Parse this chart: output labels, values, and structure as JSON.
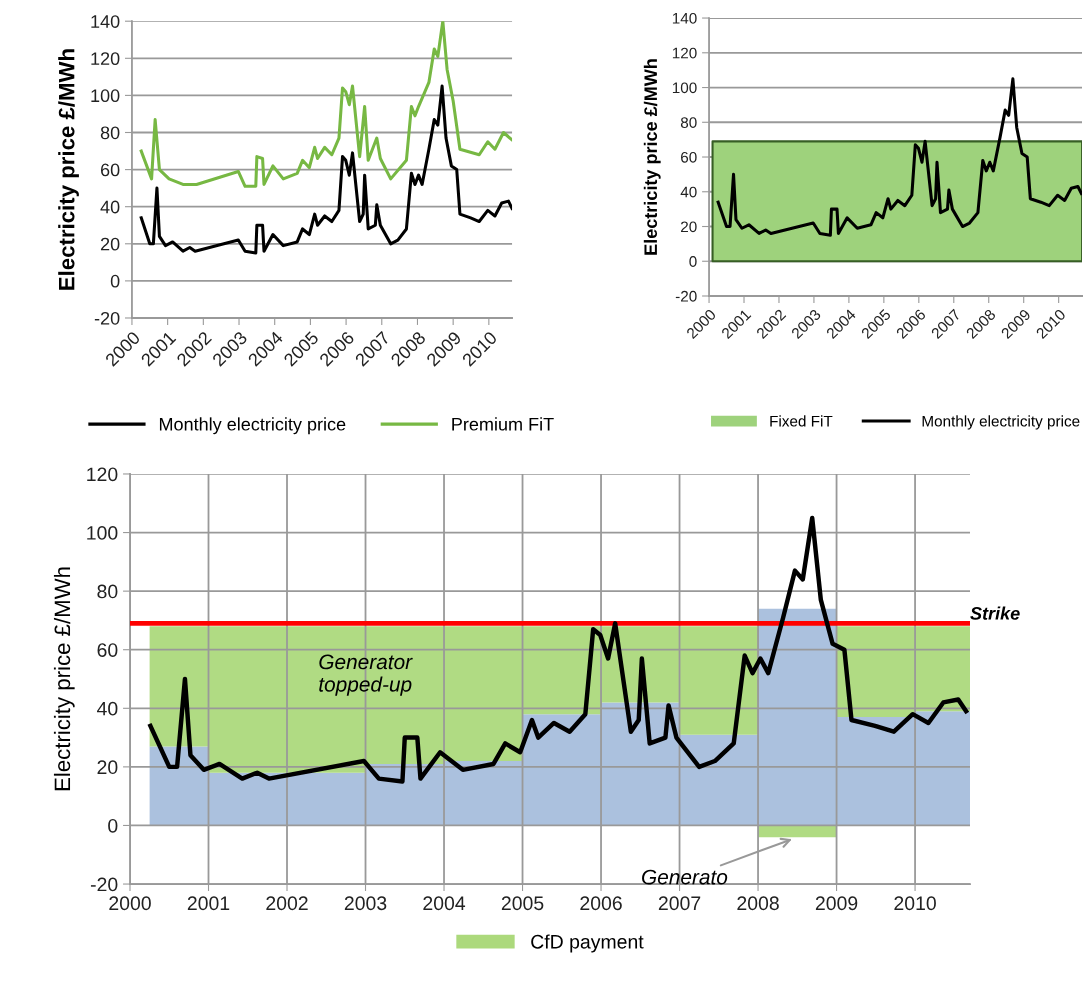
{
  "chart_data": [
    {
      "type": "line",
      "ylabel": "Electricity price £/MWh",
      "xlim": [
        2000,
        2010.65
      ],
      "xticks": [
        2000,
        2001,
        2002,
        2003,
        2004,
        2005,
        2006,
        2007,
        2008,
        2009,
        2010
      ],
      "ylim": [
        -20,
        140
      ],
      "yticks": [
        -20,
        0,
        20,
        40,
        60,
        80,
        100,
        120,
        140
      ],
      "grid": "y",
      "legend": "bottom",
      "line_style": "solid",
      "marker": "none",
      "series": [
        {
          "name": "Monthly electricity price",
          "color": "#000000",
          "x": [
            2000.26,
            2000.5,
            2000.6,
            2000.7,
            2000.77,
            2000.94,
            2001.14,
            2001.43,
            2001.62,
            2001.77,
            2002.98,
            2003.17,
            2003.47,
            2003.5,
            2003.66,
            2003.7,
            2003.95,
            2004.24,
            2004.63,
            2004.78,
            2004.97,
            2005.12,
            2005.2,
            2005.4,
            2005.6,
            2005.8,
            2005.9,
            2005.99,
            2006.09,
            2006.18,
            2006.38,
            2006.48,
            2006.52,
            2006.62,
            2006.82,
            2006.86,
            2006.96,
            2007.25,
            2007.45,
            2007.69,
            2007.83,
            2007.93,
            2008.03,
            2008.13,
            2008.32,
            2008.47,
            2008.57,
            2008.69,
            2008.8,
            2008.95,
            2009.1,
            2009.19,
            2009.49,
            2009.73,
            2009.97,
            2010.17,
            2010.36,
            2010.55,
            2010.65
          ],
          "values": [
            34,
            20,
            20,
            50,
            24,
            19,
            21,
            16,
            18,
            16,
            22,
            16,
            15,
            30,
            30,
            16,
            25,
            19,
            21,
            28,
            25,
            36,
            30,
            35,
            32,
            38,
            67,
            65,
            57,
            69,
            32,
            36,
            57,
            28,
            30,
            41,
            30,
            20,
            22,
            28,
            58,
            52,
            57,
            52,
            71,
            87,
            84,
            105,
            77,
            62,
            60,
            36,
            34,
            32,
            38,
            35,
            42,
            43,
            39
          ]
        },
        {
          "name": "Premium FiT",
          "color": "#77b843",
          "x": [
            2000.26,
            2000.55,
            2000.65,
            2000.77,
            2001.04,
            2001.43,
            2001.81,
            2002.98,
            2003.17,
            2003.47,
            2003.5,
            2003.66,
            2003.7,
            2003.95,
            2004.24,
            2004.63,
            2004.78,
            2004.97,
            2005.12,
            2005.2,
            2005.4,
            2005.6,
            2005.8,
            2005.9,
            2005.99,
            2006.09,
            2006.18,
            2006.38,
            2006.52,
            2006.62,
            2006.86,
            2006.96,
            2007.25,
            2007.69,
            2007.83,
            2007.93,
            2008.03,
            2008.32,
            2008.47,
            2008.57,
            2008.71,
            2008.83,
            2009.0,
            2009.19,
            2009.73,
            2009.97,
            2010.17,
            2010.41,
            2010.65
          ],
          "values": [
            70,
            55,
            87,
            60,
            55,
            52,
            52,
            59,
            51,
            51,
            67,
            66,
            52,
            62,
            55,
            58,
            65,
            61,
            72,
            66,
            72,
            68,
            77,
            104,
            102,
            95,
            105,
            67,
            94,
            65,
            77,
            66,
            55,
            65,
            94,
            89,
            94,
            107,
            125,
            121,
            140,
            114,
            97,
            71,
            68,
            75,
            71,
            80,
            76
          ]
        }
      ]
    },
    {
      "type": "line",
      "ylabel": "Electricity price £/MWh",
      "xlim": [
        2000,
        2010.67
      ],
      "xticks": [
        2000,
        2001,
        2002,
        2003,
        2004,
        2005,
        2006,
        2007,
        2008,
        2009,
        2010
      ],
      "ylim": [
        -20,
        140
      ],
      "yticks": [
        -20,
        0,
        20,
        40,
        60,
        80,
        100,
        120,
        140
      ],
      "grid": "y",
      "legend": "bottom",
      "line_style": "solid",
      "marker": "none",
      "series": [
        {
          "name": "Fixed FiT",
          "type": "area",
          "color": "#9ed27c",
          "x": [
            2000.1,
            2010.67
          ],
          "values": [
            69,
            69
          ]
        },
        {
          "name": "Monthly electricity price",
          "color": "#000000",
          "x": [
            2000.26,
            2000.5,
            2000.6,
            2000.7,
            2000.77,
            2000.94,
            2001.14,
            2001.43,
            2001.62,
            2001.77,
            2002.98,
            2003.17,
            2003.47,
            2003.5,
            2003.66,
            2003.7,
            2003.95,
            2004.24,
            2004.63,
            2004.78,
            2004.97,
            2005.12,
            2005.2,
            2005.4,
            2005.6,
            2005.8,
            2005.9,
            2005.99,
            2006.09,
            2006.18,
            2006.38,
            2006.48,
            2006.52,
            2006.62,
            2006.82,
            2006.86,
            2006.96,
            2007.25,
            2007.45,
            2007.69,
            2007.83,
            2007.93,
            2008.03,
            2008.13,
            2008.32,
            2008.47,
            2008.57,
            2008.69,
            2008.8,
            2008.95,
            2009.1,
            2009.19,
            2009.49,
            2009.73,
            2009.97,
            2010.17,
            2010.36,
            2010.55,
            2010.65
          ],
          "values": [
            34,
            20,
            20,
            50,
            24,
            19,
            21,
            16,
            18,
            16,
            22,
            16,
            15,
            30,
            30,
            16,
            25,
            19,
            21,
            28,
            25,
            36,
            30,
            35,
            32,
            38,
            67,
            65,
            57,
            69,
            32,
            36,
            57,
            28,
            30,
            41,
            30,
            20,
            22,
            28,
            58,
            52,
            57,
            52,
            71,
            87,
            84,
            105,
            77,
            62,
            60,
            36,
            34,
            32,
            38,
            35,
            42,
            43,
            39
          ]
        }
      ]
    },
    {
      "type": "bar",
      "stacked": true,
      "ylabel": "Electricity price £/MWh",
      "xlim": [
        2000,
        2010.7
      ],
      "xticks": [
        2000,
        2001,
        2002,
        2003,
        2004,
        2005,
        2006,
        2007,
        2008,
        2009,
        2010
      ],
      "ylim": [
        -20,
        120
      ],
      "yticks": [
        -20,
        0,
        20,
        40,
        60,
        80,
        100,
        120
      ],
      "grid": true,
      "legend": "bottom",
      "series": [
        {
          "color": "#a7bedc",
          "x": [
            2000.625,
            2001.5,
            2002.5,
            2003.5,
            2004.5,
            2005.5,
            2006.5,
            2007.5,
            2008.5,
            2009.5,
            2010.35
          ],
          "values": [
            27,
            18,
            18,
            21,
            22,
            38,
            42,
            31,
            74,
            37,
            39
          ]
        },
        {
          "name": "CfD payment",
          "color": "#acd97c",
          "x": [
            2000.625,
            2001.5,
            2002.5,
            2003.5,
            2004.5,
            2005.5,
            2006.5,
            2007.5,
            2008.5,
            2009.5,
            2010.35
          ],
          "values": [
            41,
            50,
            50,
            47,
            46,
            30,
            26,
            37,
            -4,
            31,
            29
          ]
        },
        {
          "type": "line",
          "color": "#000000",
          "x": [
            2000.26,
            2000.5,
            2000.6,
            2000.7,
            2000.77,
            2000.94,
            2001.14,
            2001.43,
            2001.62,
            2001.77,
            2002.98,
            2003.17,
            2003.47,
            2003.5,
            2003.66,
            2003.7,
            2003.95,
            2004.24,
            2004.63,
            2004.78,
            2004.97,
            2005.12,
            2005.2,
            2005.4,
            2005.6,
            2005.8,
            2005.9,
            2005.99,
            2006.09,
            2006.18,
            2006.38,
            2006.48,
            2006.52,
            2006.62,
            2006.82,
            2006.86,
            2006.96,
            2007.25,
            2007.45,
            2007.69,
            2007.83,
            2007.93,
            2008.03,
            2008.13,
            2008.32,
            2008.47,
            2008.57,
            2008.69,
            2008.8,
            2008.95,
            2009.1,
            2009.19,
            2009.49,
            2009.73,
            2009.97,
            2010.17,
            2010.36,
            2010.55,
            2010.65
          ],
          "values": [
            34,
            20,
            20,
            50,
            24,
            19,
            21,
            16,
            18,
            16,
            22,
            16,
            15,
            30,
            30,
            16,
            25,
            19,
            21,
            28,
            25,
            36,
            30,
            35,
            32,
            38,
            67,
            65,
            57,
            69,
            32,
            36,
            57,
            28,
            30,
            41,
            30,
            20,
            22,
            28,
            58,
            52,
            57,
            52,
            71,
            87,
            84,
            105,
            77,
            62,
            60,
            36,
            34,
            32,
            38,
            35,
            42,
            43,
            39
          ]
        }
      ],
      "ref_lines": [
        {
          "axis": "y",
          "value": 69,
          "label": "Strike",
          "color": "#ff0000"
        }
      ],
      "annotations": [
        "Generator\ntopped-up",
        {
          "text": "Generato",
          "x": 2008.5,
          "y": -4
        }
      ]
    }
  ]
}
